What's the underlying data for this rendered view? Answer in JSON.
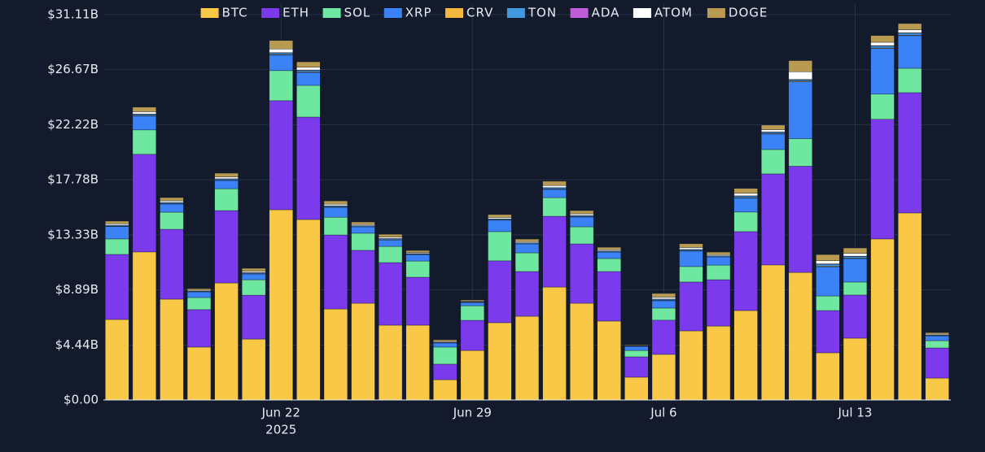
{
  "chart_data": {
    "type": "stacked_bar",
    "x": [
      "2025-06-16",
      "2025-06-17",
      "2025-06-18",
      "2025-06-19",
      "2025-06-20",
      "2025-06-21",
      "2025-06-22",
      "2025-06-23",
      "2025-06-24",
      "2025-06-25",
      "2025-06-26",
      "2025-06-27",
      "2025-06-28",
      "2025-06-29",
      "2025-06-30",
      "2025-07-01",
      "2025-07-02",
      "2025-07-03",
      "2025-07-04",
      "2025-07-05",
      "2025-07-06",
      "2025-07-07",
      "2025-07-08",
      "2025-07-09",
      "2025-07-10",
      "2025-07-11",
      "2025-07-12",
      "2025-07-13",
      "2025-07-14",
      "2025-07-15",
      "2025-07-16"
    ],
    "xlim": [
      "2025-06-15T12:00:00Z",
      "2025-07-16T12:00:00Z"
    ],
    "xticks": [
      {
        "value": "2025-06-22",
        "label": "Jun 22"
      },
      {
        "value": "2025-06-29",
        "label": "Jun 29"
      },
      {
        "value": "2025-07-06",
        "label": "Jul 6"
      },
      {
        "value": "2025-07-13",
        "label": "Jul 13"
      }
    ],
    "xaxis_year": "2025",
    "ylim": [
      0,
      31.11
    ],
    "yticks": [
      {
        "value": 0,
        "label": "$0.00"
      },
      {
        "value": 4.44,
        "label": "$4.44B"
      },
      {
        "value": 8.89,
        "label": "$8.89B"
      },
      {
        "value": 13.33,
        "label": "$13.33B"
      },
      {
        "value": 17.78,
        "label": "$17.78B"
      },
      {
        "value": 22.22,
        "label": "$22.22B"
      },
      {
        "value": 26.67,
        "label": "$26.67B"
      },
      {
        "value": 31.11,
        "label": "$31.11B"
      }
    ],
    "grid": true,
    "legend": "top",
    "series": [
      {
        "name": "BTC",
        "color": "#f9c846",
        "values": [
          6.5,
          11.95,
          8.14,
          4.27,
          9.45,
          4.92,
          15.36,
          14.57,
          7.35,
          7.81,
          6.04,
          6.04,
          1.64,
          4.0,
          6.24,
          6.76,
          9.12,
          7.81,
          6.37,
          1.84,
          3.68,
          5.58,
          5.97,
          7.22,
          10.9,
          10.3,
          3.81,
          4.99,
          13.0,
          15.1,
          1.77
        ]
      },
      {
        "name": "ETH",
        "color": "#7c3aed",
        "values": [
          5.25,
          7.88,
          5.64,
          3.02,
          5.84,
          3.54,
          8.8,
          8.27,
          5.97,
          4.27,
          5.05,
          3.87,
          1.25,
          2.43,
          4.99,
          3.61,
          5.71,
          4.79,
          4.0,
          1.64,
          2.76,
          3.94,
          3.74,
          6.37,
          7.35,
          8.57,
          3.41,
          3.48,
          9.66,
          9.71,
          2.43
        ]
      },
      {
        "name": "SOL",
        "color": "#6ee7a0",
        "values": [
          1.25,
          1.97,
          1.38,
          0.98,
          1.77,
          1.25,
          2.43,
          2.56,
          1.44,
          1.38,
          1.31,
          1.31,
          1.38,
          1.18,
          2.36,
          1.51,
          1.51,
          1.38,
          1.05,
          0.52,
          0.98,
          1.25,
          1.18,
          1.58,
          1.97,
          2.23,
          1.18,
          1.05,
          2.03,
          1.97,
          0.59
        ]
      },
      {
        "name": "XRP",
        "color": "#3b82f6",
        "values": [
          1.0,
          1.12,
          0.66,
          0.46,
          0.66,
          0.46,
          1.25,
          1.05,
          0.79,
          0.52,
          0.52,
          0.52,
          0.33,
          0.26,
          0.92,
          0.72,
          0.66,
          0.79,
          0.52,
          0.33,
          0.59,
          1.25,
          0.66,
          1.12,
          1.25,
          4.59,
          2.36,
          1.9,
          3.68,
          2.63,
          0.39
        ]
      },
      {
        "name": "CRV",
        "color": "#f5b83d",
        "values": [
          0.02,
          0.04,
          0.03,
          0.01,
          0.03,
          0.02,
          0.05,
          0.04,
          0.03,
          0.02,
          0.02,
          0.02,
          0.01,
          0.01,
          0.02,
          0.02,
          0.03,
          0.03,
          0.02,
          0.01,
          0.03,
          0.03,
          0.02,
          0.04,
          0.04,
          0.05,
          0.05,
          0.04,
          0.05,
          0.05,
          0.01
        ]
      },
      {
        "name": "TON",
        "color": "#4299e1",
        "values": [
          0.07,
          0.1,
          0.08,
          0.04,
          0.09,
          0.07,
          0.12,
          0.12,
          0.08,
          0.06,
          0.07,
          0.05,
          0.04,
          0.03,
          0.07,
          0.06,
          0.1,
          0.08,
          0.06,
          0.02,
          0.09,
          0.09,
          0.06,
          0.12,
          0.1,
          0.1,
          0.15,
          0.12,
          0.16,
          0.15,
          0.04
        ]
      },
      {
        "name": "ADA",
        "color": "#c05cd6",
        "values": [
          0.02,
          0.03,
          0.02,
          0.01,
          0.02,
          0.02,
          0.03,
          0.03,
          0.02,
          0.01,
          0.02,
          0.01,
          0.01,
          0.01,
          0.02,
          0.01,
          0.02,
          0.02,
          0.01,
          0.01,
          0.02,
          0.02,
          0.01,
          0.03,
          0.03,
          0.04,
          0.03,
          0.03,
          0.03,
          0.03,
          0.01
        ]
      },
      {
        "name": "ATOM",
        "color": "#ffffff",
        "values": [
          0.11,
          0.18,
          0.13,
          0.07,
          0.15,
          0.12,
          0.3,
          0.22,
          0.13,
          0.1,
          0.12,
          0.08,
          0.07,
          0.05,
          0.12,
          0.1,
          0.17,
          0.13,
          0.1,
          0.03,
          0.15,
          0.15,
          0.1,
          0.2,
          0.18,
          0.62,
          0.25,
          0.22,
          0.27,
          0.25,
          0.07
        ]
      },
      {
        "name": "DOGE",
        "color": "#b89b50",
        "values": [
          0.22,
          0.37,
          0.26,
          0.13,
          0.3,
          0.23,
          0.68,
          0.44,
          0.26,
          0.2,
          0.23,
          0.17,
          0.13,
          0.1,
          0.23,
          0.2,
          0.34,
          0.26,
          0.2,
          0.06,
          0.3,
          0.3,
          0.2,
          0.4,
          0.37,
          0.9,
          0.5,
          0.44,
          0.54,
          0.5,
          0.13
        ]
      }
    ]
  }
}
